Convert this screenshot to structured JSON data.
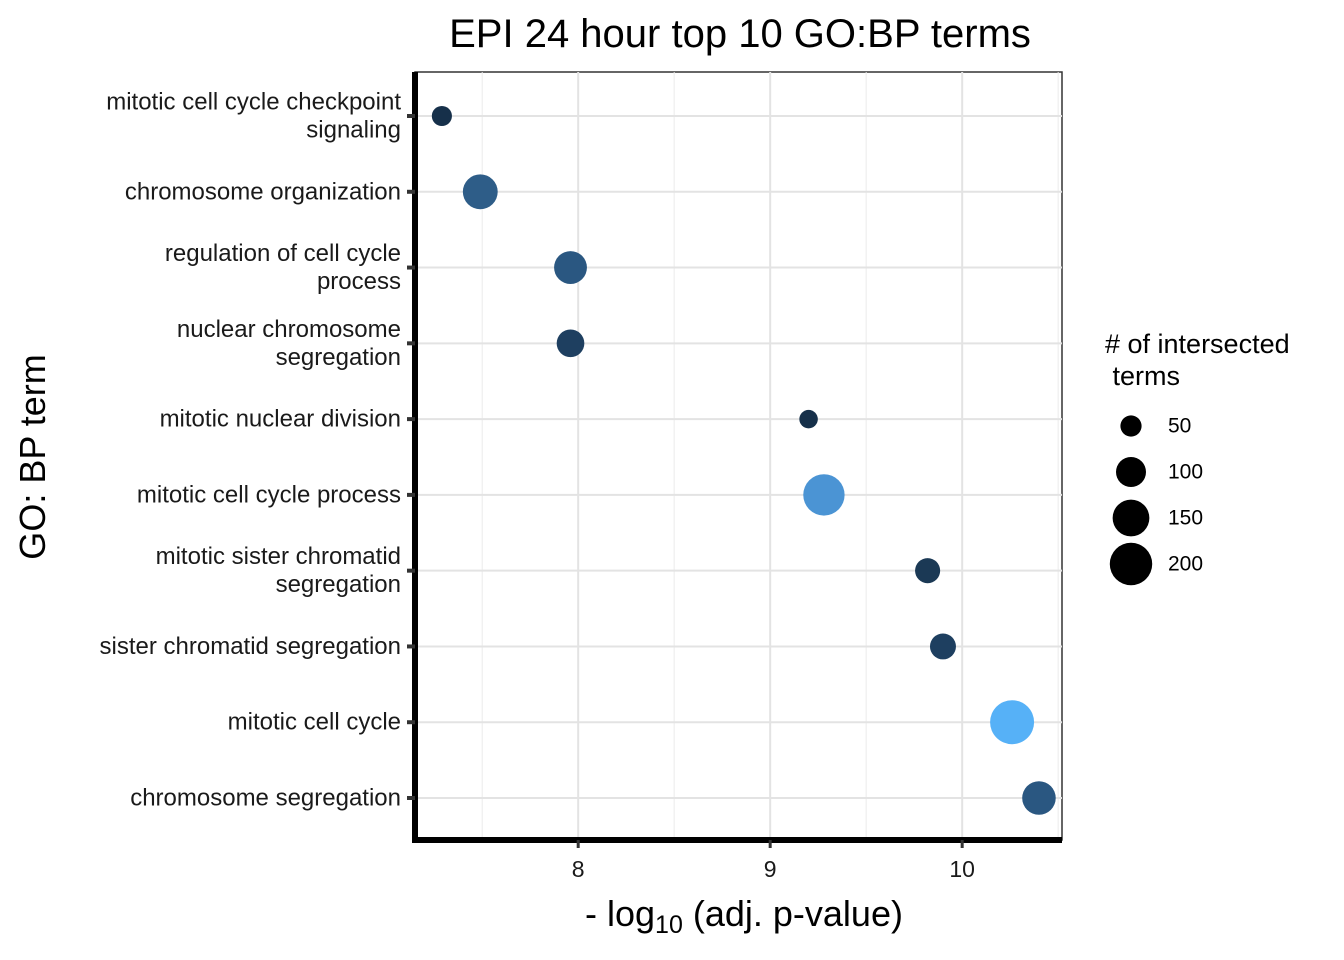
{
  "chart_data": {
    "type": "scatter",
    "title": "EPI 24 hour top 10 GO:BP terms",
    "ylabel": "GO: BP term",
    "xlabel": {
      "prefix": "- log",
      "subscript": "10",
      "suffix": " (adj. p-value)"
    },
    "xlim": [
      7.15,
      10.52
    ],
    "xticks": [
      "8",
      "9",
      "10"
    ],
    "xtick_values": [
      8,
      9,
      10
    ],
    "minor_gridlines": [
      7.5,
      8.5,
      9.5,
      10.5
    ],
    "grid": true,
    "legend_position": "right",
    "legend": {
      "title_lines": [
        "# of intersected",
        " terms"
      ],
      "sizes": [
        50,
        100,
        150,
        200
      ],
      "labels": [
        "50",
        "100",
        "150",
        "200"
      ]
    },
    "color_scale": {
      "low": "#132B43",
      "high": "#56B1F7"
    },
    "points": [
      {
        "term_lines": [
          "mitotic cell cycle checkpoint",
          "signaling"
        ],
        "x": 7.29,
        "size": 45,
        "color": "#16304A"
      },
      {
        "term_lines": [
          "chromosome organization"
        ],
        "x": 7.49,
        "size": 135,
        "color": "#2E5D88"
      },
      {
        "term_lines": [
          "regulation of cell cycle",
          "process"
        ],
        "x": 7.96,
        "size": 120,
        "color": "#2A5781"
      },
      {
        "term_lines": [
          "nuclear chromosome",
          "segregation"
        ],
        "x": 7.96,
        "size": 85,
        "color": "#1E3F60"
      },
      {
        "term_lines": [
          "mitotic nuclear division"
        ],
        "x": 9.2,
        "size": 38,
        "color": "#16304A"
      },
      {
        "term_lines": [
          "mitotic cell cycle process"
        ],
        "x": 9.28,
        "size": 190,
        "color": "#4B94D4"
      },
      {
        "term_lines": [
          "mitotic sister chromatid",
          "segregation"
        ],
        "x": 9.82,
        "size": 70,
        "color": "#1B3955"
      },
      {
        "term_lines": [
          "sister chromatid segregation"
        ],
        "x": 9.9,
        "size": 75,
        "color": "#1E3F60"
      },
      {
        "term_lines": [
          "mitotic cell cycle"
        ],
        "x": 10.26,
        "size": 215,
        "color": "#56B1F7"
      },
      {
        "term_lines": [
          "chromosome segregation"
        ],
        "x": 10.4,
        "size": 125,
        "color": "#2A5781"
      }
    ]
  }
}
